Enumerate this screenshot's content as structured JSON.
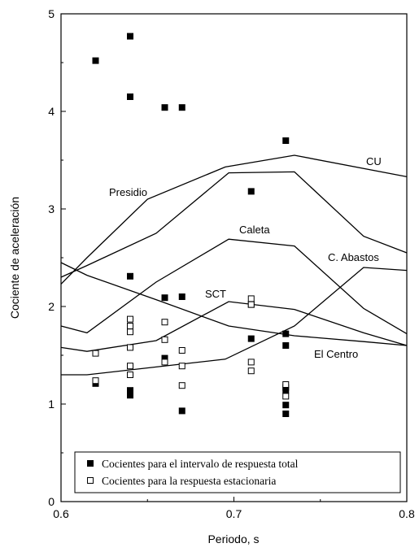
{
  "chart_data": {
    "type": "scatter",
    "xlabel": "Periodo, s",
    "ylabel": "Cociente de aceleración",
    "xlim": [
      0.6,
      0.8
    ],
    "ylim": [
      0,
      5
    ],
    "x_ticks": [
      "0.6",
      "0.7",
      "0.8"
    ],
    "x_tick_values": [
      0.6,
      0.7,
      0.8
    ],
    "y_ticks": [
      "0",
      "1",
      "2",
      "3",
      "4",
      "5"
    ],
    "y_tick_values": [
      0,
      1,
      2,
      3,
      4,
      5
    ],
    "legend_position": "bottom",
    "lines": [
      {
        "name": "CU",
        "x": [
          0.6,
          0.615,
          0.65,
          0.695,
          0.735,
          0.8
        ],
        "y": [
          2.23,
          2.5,
          3.1,
          3.43,
          3.55,
          3.33
        ]
      },
      {
        "name": "Presidio",
        "x": [
          0.6,
          0.615,
          0.655,
          0.697,
          0.735,
          0.775,
          0.8
        ],
        "y": [
          2.3,
          2.42,
          2.75,
          3.37,
          3.38,
          2.72,
          2.55
        ]
      },
      {
        "name": "Caleta",
        "x": [
          0.6,
          0.615,
          0.655,
          0.697,
          0.735,
          0.775,
          0.8
        ],
        "y": [
          1.8,
          1.73,
          2.25,
          2.69,
          2.62,
          1.98,
          1.72
        ]
      },
      {
        "name": "C. Abastos",
        "x": [
          0.6,
          0.615,
          0.655,
          0.695,
          0.735,
          0.775,
          0.8
        ],
        "y": [
          1.3,
          1.3,
          1.38,
          1.46,
          1.8,
          2.4,
          2.37
        ]
      },
      {
        "name": "SCT",
        "x": [
          0.6,
          0.615,
          0.655,
          0.697,
          0.735,
          0.775,
          0.8
        ],
        "y": [
          1.58,
          1.54,
          1.65,
          2.05,
          1.97,
          1.73,
          1.6
        ]
      },
      {
        "name": "El Centro",
        "x": [
          0.6,
          0.615,
          0.655,
          0.697,
          0.735,
          0.775,
          0.8
        ],
        "y": [
          2.45,
          2.32,
          2.07,
          1.8,
          1.7,
          1.64,
          1.6
        ]
      }
    ],
    "curve_labels": [
      "CU",
      "Presidio",
      "Caleta",
      "C. Abastos",
      "SCT",
      "El Centro"
    ],
    "series": [
      {
        "name": "Cocientes para el intervalo de respuesta total",
        "marker": "filled-square",
        "x": [
          0.62,
          0.62,
          0.64,
          0.64,
          0.64,
          0.64,
          0.64,
          0.64,
          0.66,
          0.66,
          0.66,
          0.67,
          0.67,
          0.67,
          0.71,
          0.71,
          0.71,
          0.73,
          0.73,
          0.73,
          0.73,
          0.73,
          0.73,
          0.73
        ],
        "y": [
          4.52,
          1.21,
          4.77,
          4.15,
          2.31,
          1.79,
          1.14,
          1.09,
          4.04,
          2.09,
          1.47,
          4.04,
          2.1,
          0.93,
          3.18,
          2.02,
          1.67,
          3.7,
          1.72,
          1.6,
          1.17,
          1.14,
          0.99,
          0.9
        ]
      },
      {
        "name": "Cocientes para la respuesta estacionaria",
        "marker": "open-square",
        "x": [
          0.62,
          0.62,
          0.64,
          0.64,
          0.64,
          0.64,
          0.64,
          0.64,
          0.66,
          0.66,
          0.66,
          0.67,
          0.67,
          0.67,
          0.71,
          0.71,
          0.71,
          0.71,
          0.73,
          0.73
        ],
        "y": [
          1.52,
          1.24,
          1.87,
          1.74,
          1.58,
          1.39,
          1.3,
          1.8,
          1.84,
          1.66,
          1.43,
          1.55,
          1.39,
          1.19,
          2.08,
          2.02,
          1.43,
          1.34,
          1.2,
          1.08
        ]
      }
    ]
  }
}
